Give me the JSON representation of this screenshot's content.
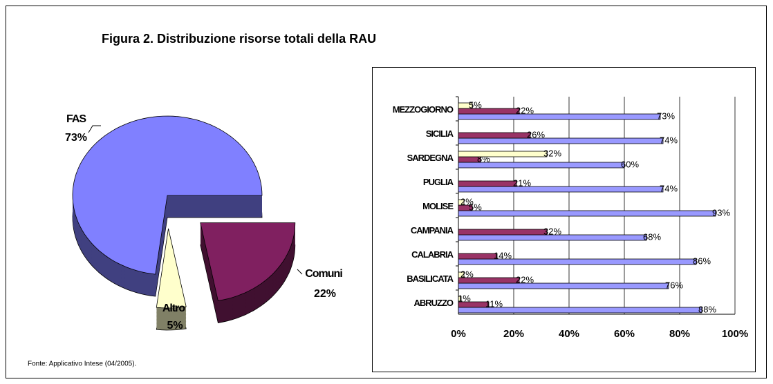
{
  "title": "Figura 2. Distribuzione risorse totali della RAU",
  "note": "Fonte: Applicativo Intese (04/2005).",
  "chart_data": [
    {
      "type": "pie",
      "categories": [
        "FAS",
        "Comuni",
        "Altro"
      ],
      "values": [
        73,
        22,
        5
      ],
      "value_labels": [
        "73%",
        "22%",
        "5%"
      ],
      "colors": [
        "#8080ff",
        "#802060",
        "#ffffcc"
      ]
    },
    {
      "type": "hbar",
      "categories": [
        "ABRUZZO",
        "BASILICATA",
        "CALABRIA",
        "CAMPANIA",
        "MOLISE",
        "PUGLIA",
        "SARDEGNA",
        "SICILIA",
        "MEZZOGIORNO"
      ],
      "series": [
        {
          "color": "#9999ff",
          "values": [
            88,
            76,
            86,
            68,
            93,
            74,
            60,
            74,
            73
          ],
          "value_labels": [
            "88%",
            "76%",
            "86%",
            "68%",
            "93%",
            "74%",
            "60%",
            "74%",
            "73%"
          ]
        },
        {
          "color": "#993366",
          "values": [
            11,
            22,
            14,
            32,
            5,
            21,
            8,
            26,
            22
          ],
          "value_labels": [
            "11%",
            "22%",
            "14%",
            "32%",
            "5%",
            "21%",
            "8%",
            "26%",
            "22%"
          ]
        },
        {
          "color": "#ffffcc",
          "values": [
            1,
            2,
            null,
            null,
            2,
            null,
            32,
            null,
            5
          ],
          "value_labels": [
            "1%",
            "2%",
            null,
            null,
            "2%",
            null,
            "32%",
            null,
            "5%"
          ]
        }
      ],
      "xlim": [
        0,
        100
      ],
      "xticks": [
        {
          "value": 0,
          "label": "0%"
        },
        {
          "value": 20,
          "label": "20%"
        },
        {
          "value": 40,
          "label": "40%"
        },
        {
          "value": 60,
          "label": "60%"
        },
        {
          "value": 80,
          "label": "80%"
        },
        {
          "value": 100,
          "label": "100%"
        }
      ],
      "grid": true
    }
  ]
}
